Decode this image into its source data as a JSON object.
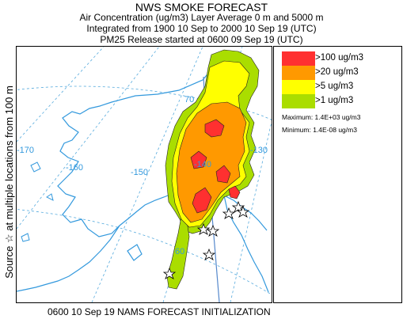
{
  "header": {
    "title": "NWS SMOKE FORECAST",
    "line2": "Air Concentration (ug/m3) Layer Average    0 m and  5000 m",
    "line3": "Integrated from 1900 10 Sep to 2000 10 Sep 19 (UTC)",
    "line4": "PM25 Release started at 0600 09 Sep 19 (UTC)"
  },
  "side_label": "Source ☆   at multiple locations   from   100 m",
  "footer": "0600 10 Sep 19 NAMS FORECAST INITIALIZATION",
  "legend": {
    "items": [
      {
        "label": ">100 ug/m3",
        "color": "#ff3030"
      },
      {
        "label": ">20 ug/m3",
        "color": "#ff9900"
      },
      {
        "label": ">5 ug/m3",
        "color": "#ffff00"
      },
      {
        "label": ">1 ug/m3",
        "color": "#aadd00"
      }
    ],
    "maximum": "Maximum: 1.4E+03 ug/m3",
    "minimum": "Minimum: 1.4E-08 ug/m3"
  },
  "map": {
    "longitude_labels": [
      "-170",
      "-160",
      "-150",
      "-140",
      "-130"
    ],
    "latitude_labels": [
      "70",
      "60"
    ],
    "colors": {
      "coast": "#3399dd",
      "grid": "#55aadd",
      "border": "#5588cc"
    }
  }
}
